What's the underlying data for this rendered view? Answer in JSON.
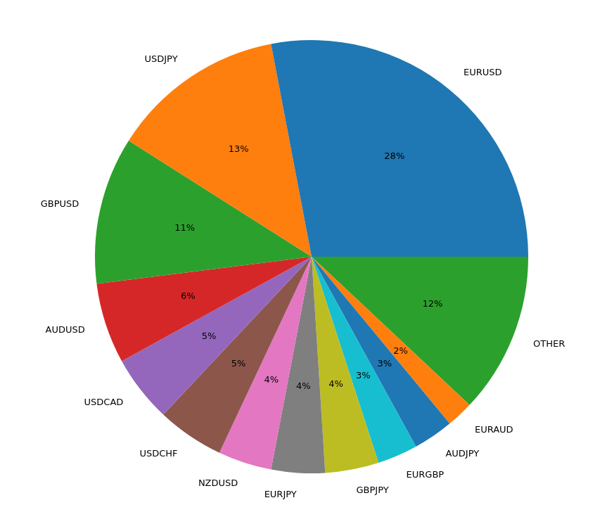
{
  "chart_data": {
    "type": "pie",
    "categories": [
      "EURUSD",
      "USDJPY",
      "GBPUSD",
      "AUDUSD",
      "USDCAD",
      "USDCHF",
      "NZDUSD",
      "EURJPY",
      "GBPJPY",
      "EURGBP",
      "AUDJPY",
      "EURAUD",
      "OTHER"
    ],
    "values": [
      28,
      13,
      11,
      6,
      5,
      5,
      4,
      4,
      4,
      3,
      3,
      2,
      12
    ],
    "value_labels": [
      "28%",
      "13%",
      "11%",
      "6%",
      "5%",
      "5%",
      "4%",
      "4%",
      "4%",
      "3%",
      "3%",
      "2%",
      "12%"
    ],
    "colors": [
      "#1f77b4",
      "#ff7f0e",
      "#2ca02c",
      "#d62728",
      "#9467bd",
      "#8c564b",
      "#e377c2",
      "#7f7f7f",
      "#bcbd22",
      "#17becf",
      "#1f77b4",
      "#ff7f0e",
      "#2ca02c"
    ],
    "data_labels": true
  }
}
